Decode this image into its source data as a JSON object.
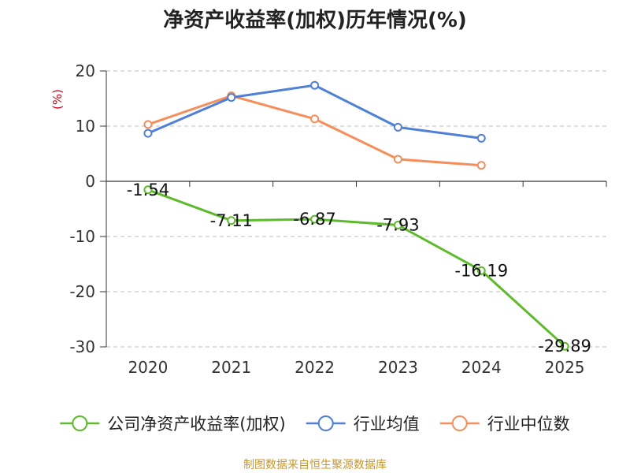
{
  "chart_data": {
    "type": "line",
    "title": "净资产收益率(加权)历年情况(%)",
    "ylabel": "(%)",
    "xlabel": "",
    "ylim": [
      -30,
      20
    ],
    "yticks": [
      20,
      10,
      0,
      -10,
      -20,
      -30
    ],
    "grid": true,
    "categories": [
      "2020",
      "2021",
      "2022",
      "2023",
      "2024",
      "2025"
    ],
    "series": [
      {
        "name": "公司净资产收益率(加权)",
        "color": "#5dbb2b",
        "values": [
          -1.54,
          -7.11,
          -6.87,
          -7.93,
          -16.19,
          -29.89
        ],
        "labels": [
          "-1.54",
          "-7.11",
          "-6.87",
          "-7.93",
          "-16.19",
          "-29.89"
        ],
        "show_labels": true
      },
      {
        "name": "行业均值",
        "color": "#4f7fd8",
        "values": [
          8.7,
          15.2,
          17.4,
          9.8,
          7.8,
          null
        ],
        "show_labels": false
      },
      {
        "name": "行业中位数",
        "color": "#f58e5a",
        "values": [
          10.3,
          15.5,
          11.3,
          4.0,
          2.9,
          null
        ],
        "show_labels": false
      }
    ],
    "legend_position": "bottom",
    "source": "制图数据来自恒生聚源数据库"
  }
}
